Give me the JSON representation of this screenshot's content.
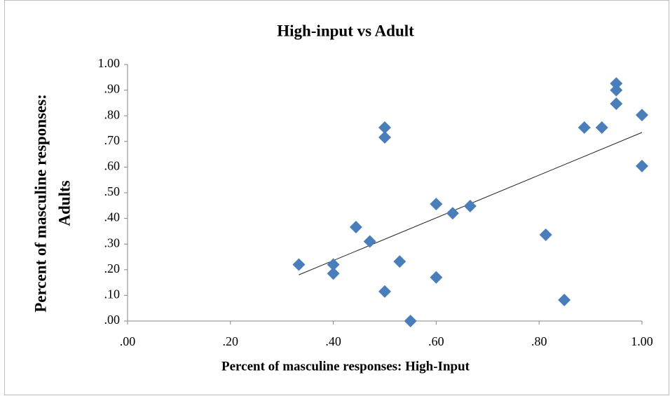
{
  "chart_data": {
    "type": "scatter",
    "title": "High-input vs Adult",
    "xlabel": "Percent of masculine responses: High-Input",
    "ylabel": [
      "Percent of masculine responses:",
      "Adults"
    ],
    "color": "#4a7ebb",
    "x": [
      0.333,
      0.4,
      0.4,
      0.444,
      0.471,
      0.5,
      0.5,
      0.5,
      0.529,
      0.55,
      0.6,
      0.6,
      0.632,
      0.666,
      0.813,
      0.849,
      0.888,
      0.922,
      0.95,
      0.95,
      0.95,
      1.0,
      1.0
    ],
    "values": [
      0.22,
      0.22,
      0.185,
      0.366,
      0.31,
      0.754,
      0.716,
      0.115,
      0.232,
      0.0,
      0.456,
      0.17,
      0.42,
      0.448,
      0.336,
      0.082,
      0.754,
      0.754,
      0.926,
      0.9,
      0.847,
      0.803,
      0.604
    ],
    "trendline": {
      "x": [
        0.333,
        1.0
      ],
      "y": [
        0.18,
        0.735
      ],
      "color": "#222222"
    },
    "xlim": [
      0,
      1
    ],
    "ylim": [
      0,
      1
    ],
    "xticks": [
      {
        "value": 0,
        "label": ".00"
      },
      {
        "value": 0.2,
        "label": ".20"
      },
      {
        "value": 0.4,
        "label": ".40"
      },
      {
        "value": 0.6,
        "label": ".60"
      },
      {
        "value": 0.8,
        "label": ".80"
      },
      {
        "value": 1,
        "label": "1.00"
      }
    ],
    "yticks": [
      {
        "value": 0,
        "label": ".00"
      },
      {
        "value": 0.1,
        "label": ".10"
      },
      {
        "value": 0.2,
        "label": ".20"
      },
      {
        "value": 0.3,
        "label": ".30"
      },
      {
        "value": 0.4,
        "label": ".40"
      },
      {
        "value": 0.5,
        "label": ".50"
      },
      {
        "value": 0.6,
        "label": ".60"
      },
      {
        "value": 0.7,
        "label": ".70"
      },
      {
        "value": 0.8,
        "label": ".80"
      },
      {
        "value": 0.9,
        "label": ".90"
      },
      {
        "value": 1,
        "label": "1.00"
      }
    ],
    "grid": false
  }
}
